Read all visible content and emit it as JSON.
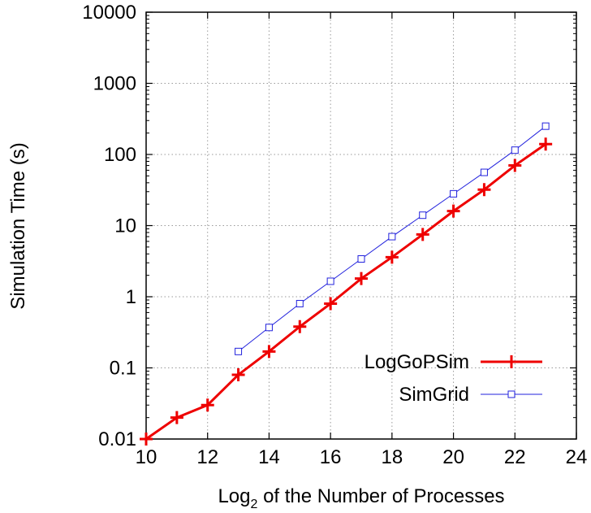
{
  "chart_data": {
    "type": "line",
    "xlabel": {
      "prefix": "Log",
      "subscript": "2",
      "suffix": " of the Number of Processes"
    },
    "ylabel": "Simulation Time (s)",
    "x_scale": "linear",
    "y_scale": "log10",
    "xlim": [
      10,
      24
    ],
    "ylim": [
      0.01,
      10000
    ],
    "x_ticks": [
      10,
      12,
      14,
      16,
      18,
      20,
      22,
      24
    ],
    "x_tick_labels": [
      "10",
      "12",
      "14",
      "16",
      "18",
      "20",
      "22",
      "24"
    ],
    "y_ticks": [
      0.01,
      0.1,
      1,
      10,
      100,
      1000,
      10000
    ],
    "y_tick_labels": [
      "0.01",
      "0.1",
      "1",
      "10",
      "100",
      "1000",
      "10000"
    ],
    "grid": true,
    "legend_position": "bottom-right",
    "series": [
      {
        "name": "LogGoPSim",
        "color": "#ee0000",
        "marker": "plus",
        "x": [
          10,
          11,
          12,
          13,
          14,
          15,
          16,
          17,
          18,
          19,
          20,
          21,
          22,
          23
        ],
        "y": [
          0.01,
          0.02,
          0.03,
          0.08,
          0.17,
          0.38,
          0.8,
          1.8,
          3.6,
          7.5,
          16,
          32,
          70,
          140
        ]
      },
      {
        "name": "SimGrid",
        "color": "#2222dd",
        "marker": "square",
        "x": [
          13,
          14,
          15,
          16,
          17,
          18,
          19,
          20,
          21,
          22,
          23
        ],
        "y": [
          0.17,
          0.37,
          0.8,
          1.65,
          3.4,
          7,
          14,
          28,
          56,
          115,
          250
        ]
      }
    ]
  }
}
